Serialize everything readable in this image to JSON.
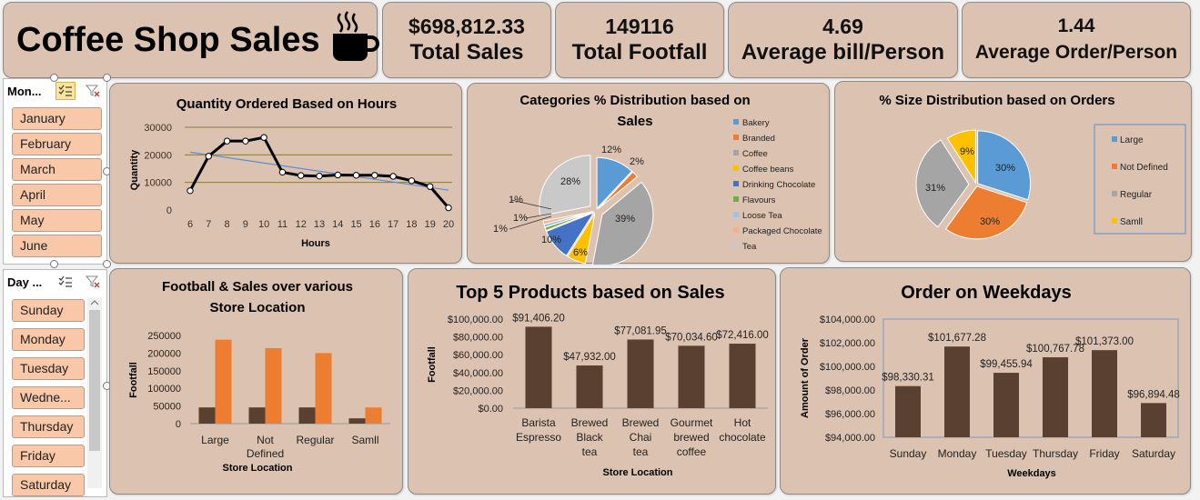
{
  "header": {
    "title": "Coffee Shop Sales",
    "kpis": [
      {
        "value": "$698,812.33",
        "label": "Total Sales"
      },
      {
        "value": "149116",
        "label": "Total Footfall"
      },
      {
        "value": "4.69",
        "label": "Average bill/Person"
      },
      {
        "value": "1.44",
        "label": "Average Order/Person"
      }
    ]
  },
  "slicers": {
    "month": {
      "title": "Mon...",
      "items": [
        "January",
        "February",
        "March",
        "April",
        "May",
        "June"
      ]
    },
    "day": {
      "title": "Day ...",
      "items": [
        "Sunday",
        "Monday",
        "Tuesday",
        "Wedne...",
        "Thursday",
        "Friday",
        "Saturday"
      ]
    }
  },
  "colors": {
    "card": "#dcc2b0",
    "bar_brown": "#5a4030",
    "bar_orange": "#ed7d31",
    "slicer_item": "#f8c8a8"
  },
  "chart_data": [
    {
      "id": "hours",
      "type": "line",
      "title": "Quantity Ordered Based on Hours",
      "xlabel": "Hours",
      "ylabel": "Quantity",
      "x": [
        6,
        7,
        8,
        9,
        10,
        11,
        12,
        13,
        14,
        15,
        16,
        17,
        18,
        19,
        20
      ],
      "y": [
        7000,
        19500,
        25000,
        25000,
        26300,
        13700,
        12500,
        12300,
        12700,
        12600,
        12600,
        12200,
        10600,
        8500,
        800
      ],
      "trendline": true,
      "ylim": [
        0,
        30000
      ],
      "yticks": [
        "0",
        "10000",
        "20000",
        "30000"
      ]
    },
    {
      "id": "categories",
      "type": "pie",
      "title": "Categories % Distribution based on Sales",
      "labels": [
        "Bakery",
        "Branded",
        "Coffee",
        "Coffee beans",
        "Drinking Chocolate",
        "Flavours",
        "Loose Tea",
        "Packaged Chocolate",
        "Tea"
      ],
      "values": [
        12,
        2,
        39,
        6,
        10,
        1,
        1,
        1,
        28
      ],
      "value_labels": [
        "12%",
        "2%",
        "39%",
        "6%",
        "10%",
        "1%",
        "1%",
        "1%",
        "28%"
      ],
      "colors": [
        "#5b9bd5",
        "#ed7d31",
        "#a5a5a5",
        "#ffc000",
        "#4472c4",
        "#70ad47",
        "#9dc3e6",
        "#f4b183",
        "#c9c9c9"
      ],
      "legend": "right"
    },
    {
      "id": "size",
      "type": "pie",
      "title": "% Size Distribution based on Orders",
      "labels": [
        "Large",
        "Not Defined",
        "Regular",
        "Samll"
      ],
      "values": [
        30,
        30,
        31,
        9
      ],
      "value_labels": [
        "30%",
        "30%",
        "31%",
        "9%"
      ],
      "colors": [
        "#5b9bd5",
        "#ed7d31",
        "#a5a5a5",
        "#ffc000"
      ],
      "legend": "right"
    },
    {
      "id": "footfall",
      "type": "bar",
      "title": "Football & Sales over various Store Location",
      "xlabel": "Store Location",
      "ylabel": "Footfall",
      "categories": [
        "Large",
        "Not Defined",
        "Regular",
        "Samll"
      ],
      "series": [
        {
          "values": [
            46000,
            46000,
            46000,
            15000
          ]
        },
        {
          "values": [
            238000,
            214000,
            200000,
            46000
          ]
        }
      ],
      "ylim": [
        0,
        250000
      ],
      "yticks": [
        "0",
        "50000",
        "100000",
        "150000",
        "200000",
        "250000"
      ]
    },
    {
      "id": "products",
      "type": "bar",
      "title": "Top 5 Products based on Sales",
      "xlabel": "Store Location",
      "ylabel": "Footfall",
      "categories": [
        "Barista Espresso",
        "Brewed Black tea",
        "Brewed Chai tea",
        "Gourmet brewed coffee",
        "Hot chocolate"
      ],
      "values": [
        91406.2,
        47932.0,
        77081.95,
        70034.6,
        72416.0
      ],
      "value_labels": [
        "$91,406.20",
        "$47,932.00",
        "$77,081.95",
        "$70,034.60",
        "$72,416.00"
      ],
      "ylim": [
        0,
        100000
      ],
      "yticks": [
        "$0.00",
        "$20,000.00",
        "$40,000.00",
        "$60,000.00",
        "$80,000.00",
        "$100,000.00"
      ]
    },
    {
      "id": "weekdays",
      "type": "bar",
      "title": "Order on Weekdays",
      "xlabel": "Weekdays",
      "ylabel": "Amount of Order",
      "categories": [
        "Sunday",
        "Monday",
        "Tuesday",
        "Thursday",
        "Friday",
        "Saturday"
      ],
      "values": [
        98330.31,
        101677.28,
        99455.94,
        100767.78,
        101373.0,
        96894.48
      ],
      "value_labels": [
        "$98,330.31",
        "$101,677.28",
        "$99,455.94",
        "$100,767.78",
        "$101,373.00",
        "$96,894.48"
      ],
      "ylim": [
        94000,
        104000
      ],
      "yticks": [
        "$94,000.00",
        "$96,000.00",
        "$98,000.00",
        "$100,000.00",
        "$102,000.00",
        "$104,000.00"
      ]
    }
  ]
}
